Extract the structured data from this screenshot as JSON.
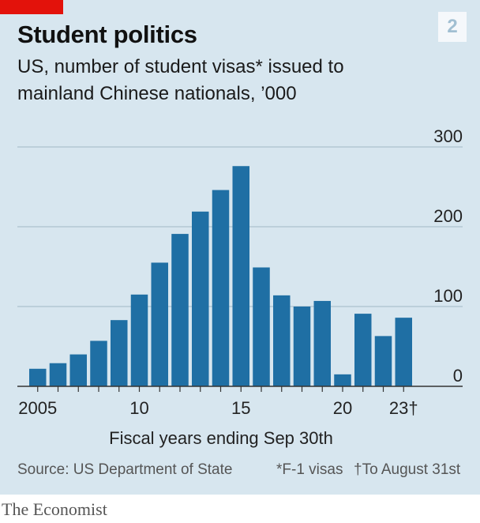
{
  "header": {
    "title": "Student politics",
    "chart_number": "2",
    "subtitle_line1": "US, number of student visas* issued to",
    "subtitle_line2": "mainland Chinese nationals, ’000"
  },
  "footer": {
    "source": "Source: US Department of State",
    "note1": "*F-1 visas",
    "note2": "†To August 31st",
    "brand": "The Economist"
  },
  "colors": {
    "background": "#d7e6ef",
    "bar": "#1f6fa4",
    "accent_red": "#e3120b",
    "gridline": "#b3c7d3"
  },
  "chart_data": {
    "type": "bar",
    "title": "Student politics",
    "subtitle": "US, number of student visas* issued to mainland Chinese nationals, ’000",
    "xlabel": "Fiscal years ending Sep 30th",
    "ylabel": "",
    "categories": [
      "2005",
      "2006",
      "2007",
      "2008",
      "2009",
      "2010",
      "2011",
      "2012",
      "2013",
      "2014",
      "2015",
      "2016",
      "2017",
      "2018",
      "2019",
      "2020",
      "2021",
      "2022",
      "2023"
    ],
    "x_tick_labels": [
      {
        "category": "2005",
        "label": "2005"
      },
      {
        "category": "2010",
        "label": "10"
      },
      {
        "category": "2015",
        "label": "15"
      },
      {
        "category": "2020",
        "label": "20"
      },
      {
        "category": "2023",
        "label": "23†"
      }
    ],
    "values": [
      22,
      29,
      40,
      57,
      83,
      115,
      155,
      191,
      219,
      246,
      276,
      149,
      114,
      100,
      107,
      15,
      91,
      63,
      86
    ],
    "ylim": [
      0,
      300
    ],
    "yticks": [
      0,
      100,
      200,
      300
    ],
    "y_tick_labels": [
      "0",
      "100",
      "200",
      "300"
    ],
    "y_axis_side": "right",
    "grid": true
  }
}
